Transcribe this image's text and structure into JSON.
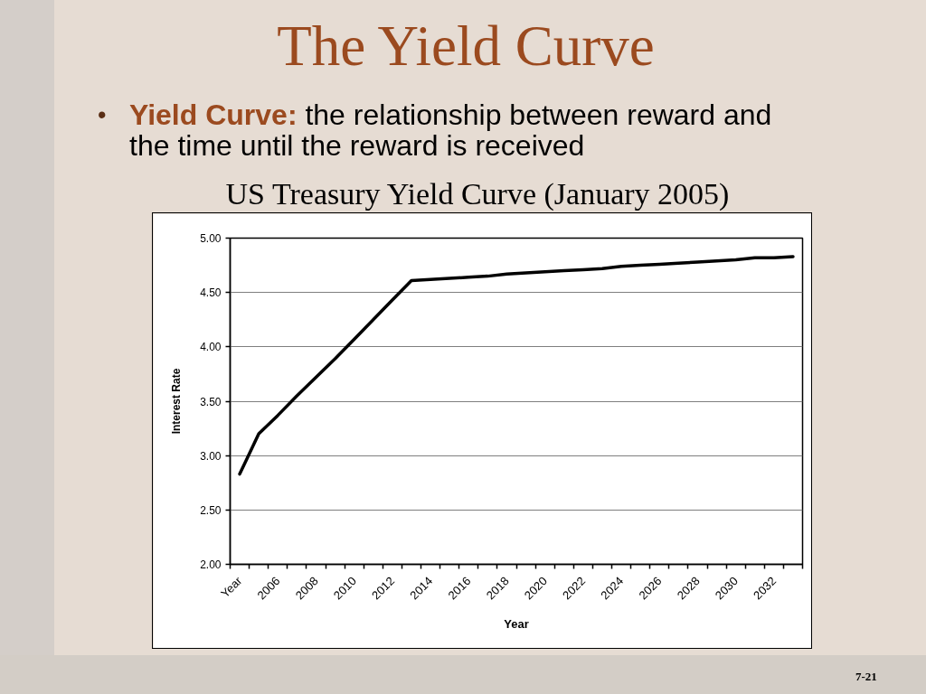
{
  "chart_data": {
    "type": "line",
    "title": "US Treasury Yield Curve (January 2005)",
    "xlabel": "Year",
    "ylabel": "Interest Rate",
    "annotations": [
      "The Yield Curve",
      "•",
      "Yield Curve: the relationship between reward and the time until the reward is received",
      "7-21"
    ],
    "categories": [
      "Year",
      null,
      "2006",
      null,
      "2008",
      null,
      "2010",
      null,
      "2012",
      null,
      "2014",
      null,
      "2016",
      null,
      "2018",
      null,
      "2020",
      null,
      "2022",
      null,
      "2024",
      null,
      "2026",
      null,
      "2028",
      null,
      "2030",
      null,
      "2032",
      null
    ],
    "series": [
      {
        "color": "#000000",
        "values": [
          2.83,
          3.2,
          3.37,
          3.55,
          3.72,
          3.89,
          4.07,
          4.25,
          4.43,
          4.61,
          4.62,
          4.63,
          4.64,
          4.65,
          4.67,
          4.68,
          4.69,
          4.7,
          4.71,
          4.72,
          4.74,
          4.75,
          4.76,
          4.77,
          4.78,
          4.79,
          4.8,
          4.82,
          4.82,
          4.83
        ]
      }
    ],
    "ylim": [
      2,
      5
    ],
    "yticks": [
      {
        "value": 2,
        "label": "2.00"
      },
      {
        "value": 2.5,
        "label": "2.50"
      },
      {
        "value": 3,
        "label": "3.00"
      },
      {
        "value": 3.5,
        "label": "3.50"
      },
      {
        "value": 4,
        "label": "4.00"
      },
      {
        "value": 4.5,
        "label": "4.50"
      },
      {
        "value": 5,
        "label": "5.00"
      }
    ],
    "grid": "y",
    "line_style": "solid"
  }
}
